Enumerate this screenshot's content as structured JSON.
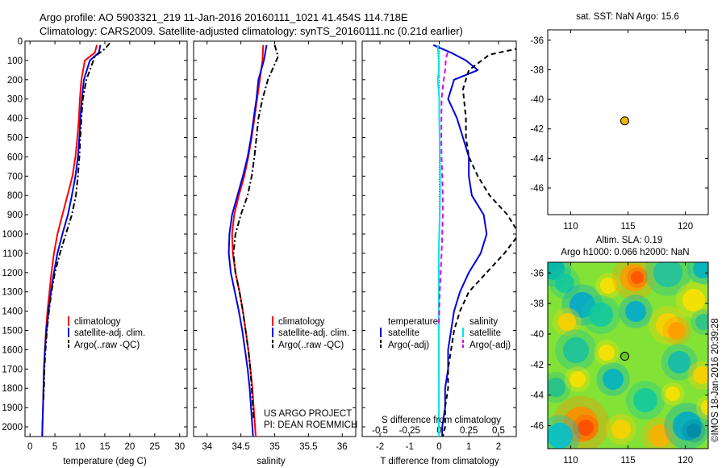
{
  "header": {
    "line1": "Argo profile: AO 5903321_219 11-Jan-2016 20160111_1021 41.454S 114.718E",
    "line2": "Climatology: CARS2009. Satellite-adjusted climatology: synTS_20160111.nc (0.21d earlier)"
  },
  "credit": "US ARGO PROJECT\nPI: DEAN ROEMMICH",
  "watermark": "©IMOS 18-Jan-2016 20:39:28",
  "colors": {
    "climatology": "#ff0000",
    "satellite": "#0000dd",
    "argo": "#000000",
    "sal_satellite": "#00e5e5",
    "sal_argo": "#e600e6",
    "marker": "#f2b400"
  },
  "chart_data": [
    {
      "id": "temperature",
      "type": "line",
      "xlabel": "temperature (deg C)",
      "xlim": [
        -1,
        31.5
      ],
      "ylim": [
        0,
        2050
      ],
      "xticks": [
        0,
        5,
        10,
        15,
        20,
        25,
        30
      ],
      "yticks": [
        0,
        100,
        200,
        300,
        400,
        500,
        600,
        700,
        800,
        900,
        1000,
        1100,
        1200,
        1300,
        1400,
        1500,
        1600,
        1700,
        1800,
        1900,
        2000
      ],
      "legend": [
        "climatology",
        "satellite-adj. clim.",
        "Argo(..raw -QC)"
      ],
      "series": [
        {
          "name": "climatology",
          "color": "#ff0000",
          "dash": "",
          "x": [
            13.4,
            13.0,
            11.0,
            10.3,
            10.0,
            9.8,
            9.5,
            9.1,
            8.5,
            7.5,
            6.5,
            5.5,
            4.8,
            4.3,
            3.9,
            3.5,
            3.2,
            3.0,
            2.8,
            2.7,
            2.6,
            2.5,
            2.45
          ],
          "y": [
            20,
            60,
            100,
            200,
            300,
            400,
            500,
            600,
            700,
            800,
            900,
            1000,
            1100,
            1200,
            1300,
            1400,
            1500,
            1600,
            1700,
            1800,
            1900,
            2000,
            2050
          ]
        },
        {
          "name": "satellite-adj. clim.",
          "color": "#0000dd",
          "dash": "",
          "x": [
            14.1,
            13.8,
            12.0,
            10.8,
            10.4,
            10.1,
            9.9,
            9.6,
            9.1,
            8.4,
            7.6,
            6.5,
            5.5,
            4.8,
            4.2,
            3.7,
            3.3,
            3.0,
            2.8,
            2.7,
            2.6,
            2.5,
            2.45
          ],
          "y": [
            20,
            60,
            100,
            200,
            300,
            400,
            500,
            600,
            700,
            800,
            900,
            1000,
            1100,
            1200,
            1300,
            1400,
            1500,
            1600,
            1700,
            1800,
            1900,
            2000,
            2050
          ]
        },
        {
          "name": "Argo(..raw -QC)",
          "color": "#000000",
          "dash": "7,3,2,3",
          "x": [
            16.0,
            15.0,
            13.0,
            11.3,
            10.6,
            10.3,
            10.1,
            9.9,
            9.6,
            9.2,
            8.4,
            7.2,
            6.0,
            5.0,
            4.3,
            3.8,
            3.4,
            3.1,
            2.9,
            2.8,
            2.7
          ],
          "y": [
            10,
            40,
            80,
            200,
            300,
            400,
            500,
            600,
            700,
            800,
            900,
            1000,
            1100,
            1200,
            1300,
            1400,
            1500,
            1600,
            1700,
            1800,
            1860
          ]
        }
      ]
    },
    {
      "id": "salinity",
      "type": "line",
      "xlabel": "salinity",
      "xlim": [
        33.8,
        36.2
      ],
      "ylim": [
        0,
        2050
      ],
      "xticks": [
        34,
        34.5,
        35,
        35.5,
        36
      ],
      "legend": [
        "climatology",
        "satellite-adj. clim.",
        "Argo(..raw -QC)"
      ],
      "series": [
        {
          "name": "climatology",
          "color": "#ff0000",
          "dash": "",
          "x": [
            34.83,
            34.82,
            34.78,
            34.74,
            34.7,
            34.66,
            34.61,
            34.55,
            34.47,
            34.4,
            34.37,
            34.38,
            34.42,
            34.48,
            34.53,
            34.57,
            34.61,
            34.64,
            34.67,
            34.69,
            34.71,
            34.72
          ],
          "y": [
            20,
            100,
            200,
            300,
            400,
            500,
            600,
            700,
            800,
            900,
            1000,
            1100,
            1200,
            1300,
            1400,
            1500,
            1600,
            1700,
            1800,
            1900,
            2000,
            2050
          ]
        },
        {
          "name": "satellite-adj. clim.",
          "color": "#0000dd",
          "dash": "",
          "x": [
            34.88,
            34.84,
            34.76,
            34.73,
            34.69,
            34.65,
            34.6,
            34.53,
            34.45,
            34.37,
            34.33,
            34.32,
            34.35,
            34.41,
            34.47,
            34.52,
            34.56,
            34.6,
            34.63,
            34.65,
            34.67,
            34.68
          ],
          "y": [
            20,
            100,
            200,
            300,
            400,
            500,
            600,
            700,
            800,
            900,
            1000,
            1100,
            1200,
            1300,
            1400,
            1500,
            1600,
            1700,
            1800,
            1900,
            2000,
            2050
          ]
        },
        {
          "name": "Argo(..raw -QC)",
          "color": "#000000",
          "dash": "7,3,2,3",
          "x": [
            35.0,
            35.05,
            34.9,
            34.82,
            34.76,
            34.73,
            34.7,
            34.66,
            34.6,
            34.5,
            34.42,
            34.39,
            34.42,
            34.48,
            34.53,
            34.57,
            34.61,
            34.64,
            34.66,
            34.68,
            34.69
          ],
          "y": [
            20,
            80,
            200,
            300,
            400,
            500,
            600,
            700,
            800,
            900,
            1000,
            1100,
            1200,
            1300,
            1400,
            1500,
            1600,
            1700,
            1800,
            1900,
            1960
          ]
        }
      ]
    },
    {
      "id": "differences",
      "type": "line",
      "xlabel": "T difference from climatology",
      "xlabel_top": "S difference from climatology",
      "xlim": [
        -2.6,
        2.6
      ],
      "ylim": [
        0,
        2050
      ],
      "xticks": [
        -2,
        -1,
        0,
        1,
        2
      ],
      "xticks_top": [
        -0.5,
        -0.25,
        0,
        0.25,
        0.5
      ],
      "legend_titles": [
        "temperature",
        "salinity"
      ],
      "legend_left": [
        "satellite",
        "Argo(-adj)"
      ],
      "legend_right": [
        "satellite",
        "Argo(-adj)"
      ],
      "series": [
        {
          "name": "temperature satellite",
          "color": "#0000dd",
          "dash": "",
          "x": [
            -0.2,
            0.4,
            0.9,
            1.3,
            0.5,
            0.3,
            0.6,
            0.8,
            1.0,
            1.0,
            1.1,
            1.5,
            1.6,
            1.4,
            1.0,
            0.7,
            0.5,
            0.4,
            0.3,
            0.3,
            0.2,
            0.2,
            0.1,
            0.1,
            0.1
          ],
          "y": [
            20,
            60,
            100,
            150,
            200,
            300,
            400,
            500,
            600,
            700,
            800,
            900,
            1000,
            1100,
            1200,
            1300,
            1400,
            1500,
            1600,
            1700,
            1800,
            1900,
            2000,
            2050,
            2060
          ]
        },
        {
          "name": "temperature Argo(-adj)",
          "color": "#000000",
          "dash": "6,4",
          "x": [
            3.2,
            2.6,
            1.7,
            1.0,
            0.8,
            0.9,
            0.9,
            1.0,
            1.3,
            1.7,
            2.3,
            2.7,
            2.2,
            1.6,
            1.0,
            0.7,
            0.5,
            0.4,
            0.3,
            0.3,
            0.2,
            0.2,
            0.1
          ],
          "y": [
            0,
            40,
            70,
            150,
            250,
            400,
            500,
            600,
            700,
            800,
            900,
            1000,
            1100,
            1200,
            1300,
            1400,
            1500,
            1600,
            1700,
            1800,
            1900,
            2000,
            2060
          ]
        },
        {
          "name": "salinity satellite",
          "color": "#00e5e5",
          "dash": "",
          "x": [
            -0.05,
            -0.02,
            -0.01,
            -0.05,
            0.0,
            0.0,
            0.01,
            0.02,
            0.03,
            0.03,
            0.02,
            0.0,
            -0.02,
            -0.02,
            -0.02,
            -0.02,
            -0.02,
            -0.01,
            -0.01,
            -0.01,
            -0.01,
            -0.01,
            -0.01,
            -0.01
          ],
          "y": [
            20,
            100,
            150,
            200,
            300,
            400,
            500,
            600,
            700,
            800,
            900,
            1000,
            1100,
            1200,
            1300,
            1400,
            1500,
            1600,
            1700,
            1800,
            1900,
            2000,
            2040,
            2060
          ]
        },
        {
          "name": "salinity Argo(-adj)",
          "color": "#e600e6",
          "dash": "6,4",
          "x": [
            0.28,
            0.22,
            0.2,
            0.15,
            0.08,
            0.07,
            0.08,
            0.1,
            0.12,
            0.12,
            0.1,
            0.08,
            0.05,
            0.02,
            0.0,
            -0.01
          ],
          "y": [
            60,
            100,
            150,
            200,
            300,
            500,
            600,
            700,
            800,
            900,
            1000,
            1100,
            1200,
            1300,
            1400,
            1480
          ]
        }
      ]
    },
    {
      "id": "sst_map",
      "type": "scatter",
      "title": "sat. SST: NaN Argo: 15.6",
      "xlim": [
        108,
        122
      ],
      "ylim": [
        -47.8,
        -35.3
      ],
      "xticks": [
        110,
        115,
        120
      ],
      "yticks": [
        -36,
        -38,
        -40,
        -42,
        -44,
        -46
      ],
      "points": [
        {
          "x": 114.718,
          "y": -41.454
        }
      ]
    },
    {
      "id": "sla_map",
      "type": "heatmap",
      "title_line1": "Altim. SLA: 0.19",
      "title_line2": "Argo h1000: 0.066 h2000: NaN",
      "xlim": [
        108,
        122
      ],
      "ylim": [
        -47.5,
        -35.3
      ],
      "xticks": [
        110,
        115,
        120
      ],
      "yticks": [
        -36,
        -38,
        -40,
        -42,
        -44,
        -46
      ],
      "points": [
        {
          "x": 114.718,
          "y": -41.454
        }
      ]
    }
  ]
}
